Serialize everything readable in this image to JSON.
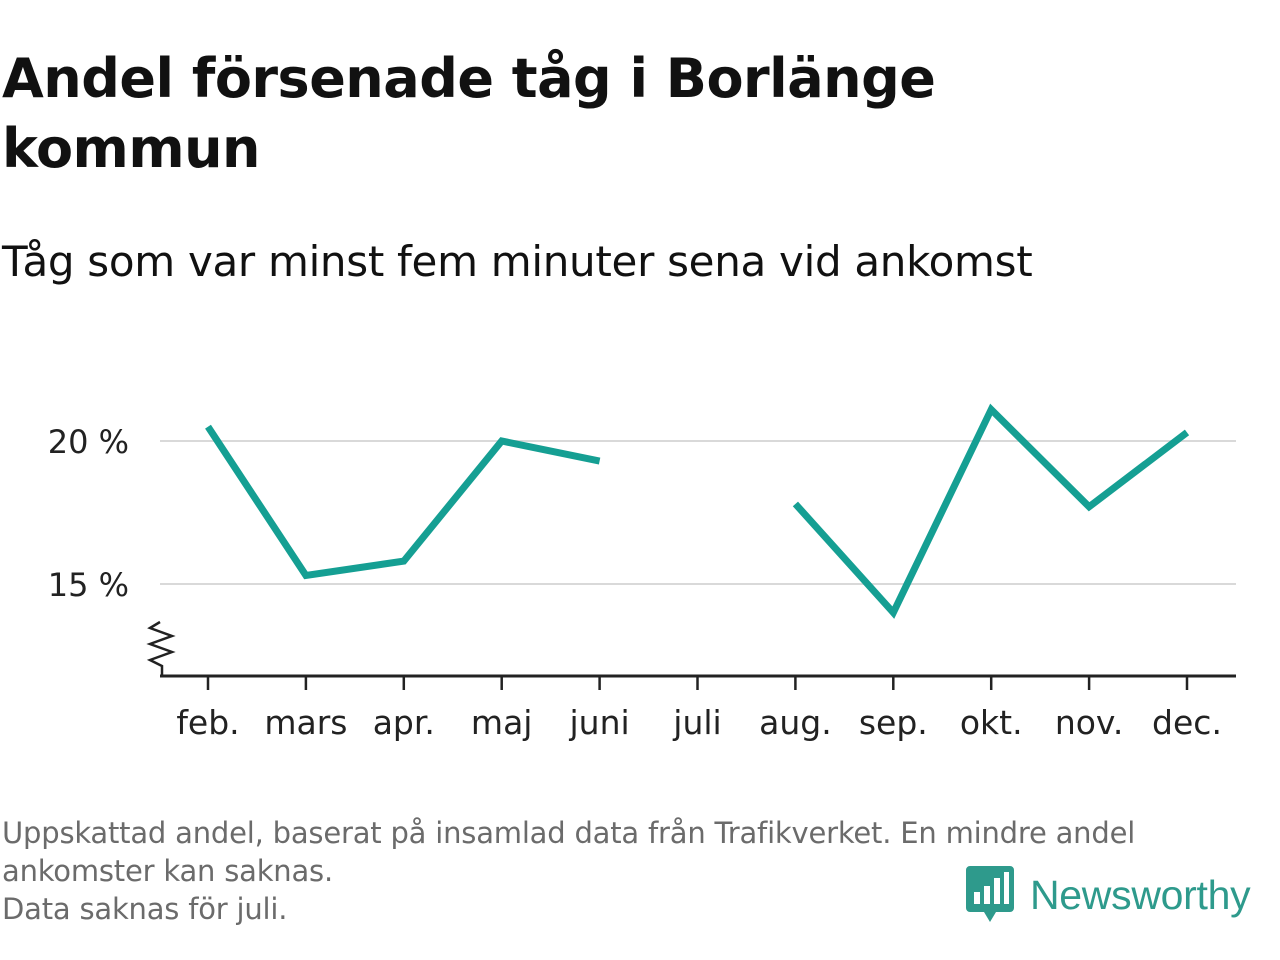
{
  "title": "Andel försenade tåg i Borlänge kommun",
  "subtitle": "Tåg som var minst fem minuter sena vid ankomst",
  "colors": {
    "line": "#159f93",
    "grid": "#d9d9d9",
    "axis": "#222222",
    "footnote": "#6b6b6b",
    "brand": "#2e9a8c"
  },
  "chart_data": {
    "type": "line",
    "categories": [
      "feb.",
      "mars",
      "apr.",
      "maj",
      "juni",
      "juli",
      "aug.",
      "sep.",
      "okt.",
      "nov.",
      "dec."
    ],
    "series": [
      {
        "values": [
          20.5,
          15.3,
          15.8,
          20.0,
          19.3,
          null,
          17.8,
          14.0,
          21.1,
          17.7,
          20.3
        ]
      }
    ],
    "yticks": [
      {
        "value": 15,
        "label": "15 %"
      },
      {
        "value": 20,
        "label": "20 %"
      }
    ],
    "ylim": [
      12.0,
      22.5
    ],
    "y_axis_break": true,
    "grid": true,
    "xlabel": "",
    "ylabel": ""
  },
  "footnote": {
    "line1": "Uppskattad andel, baserat på insamlad data från Trafikverket. En mindre andel",
    "line2": "ankomster kan saknas.",
    "line3": "Data saknas för juli."
  },
  "brand": {
    "name": "Newsworthy",
    "icon": "newsworthy-logo-icon"
  }
}
